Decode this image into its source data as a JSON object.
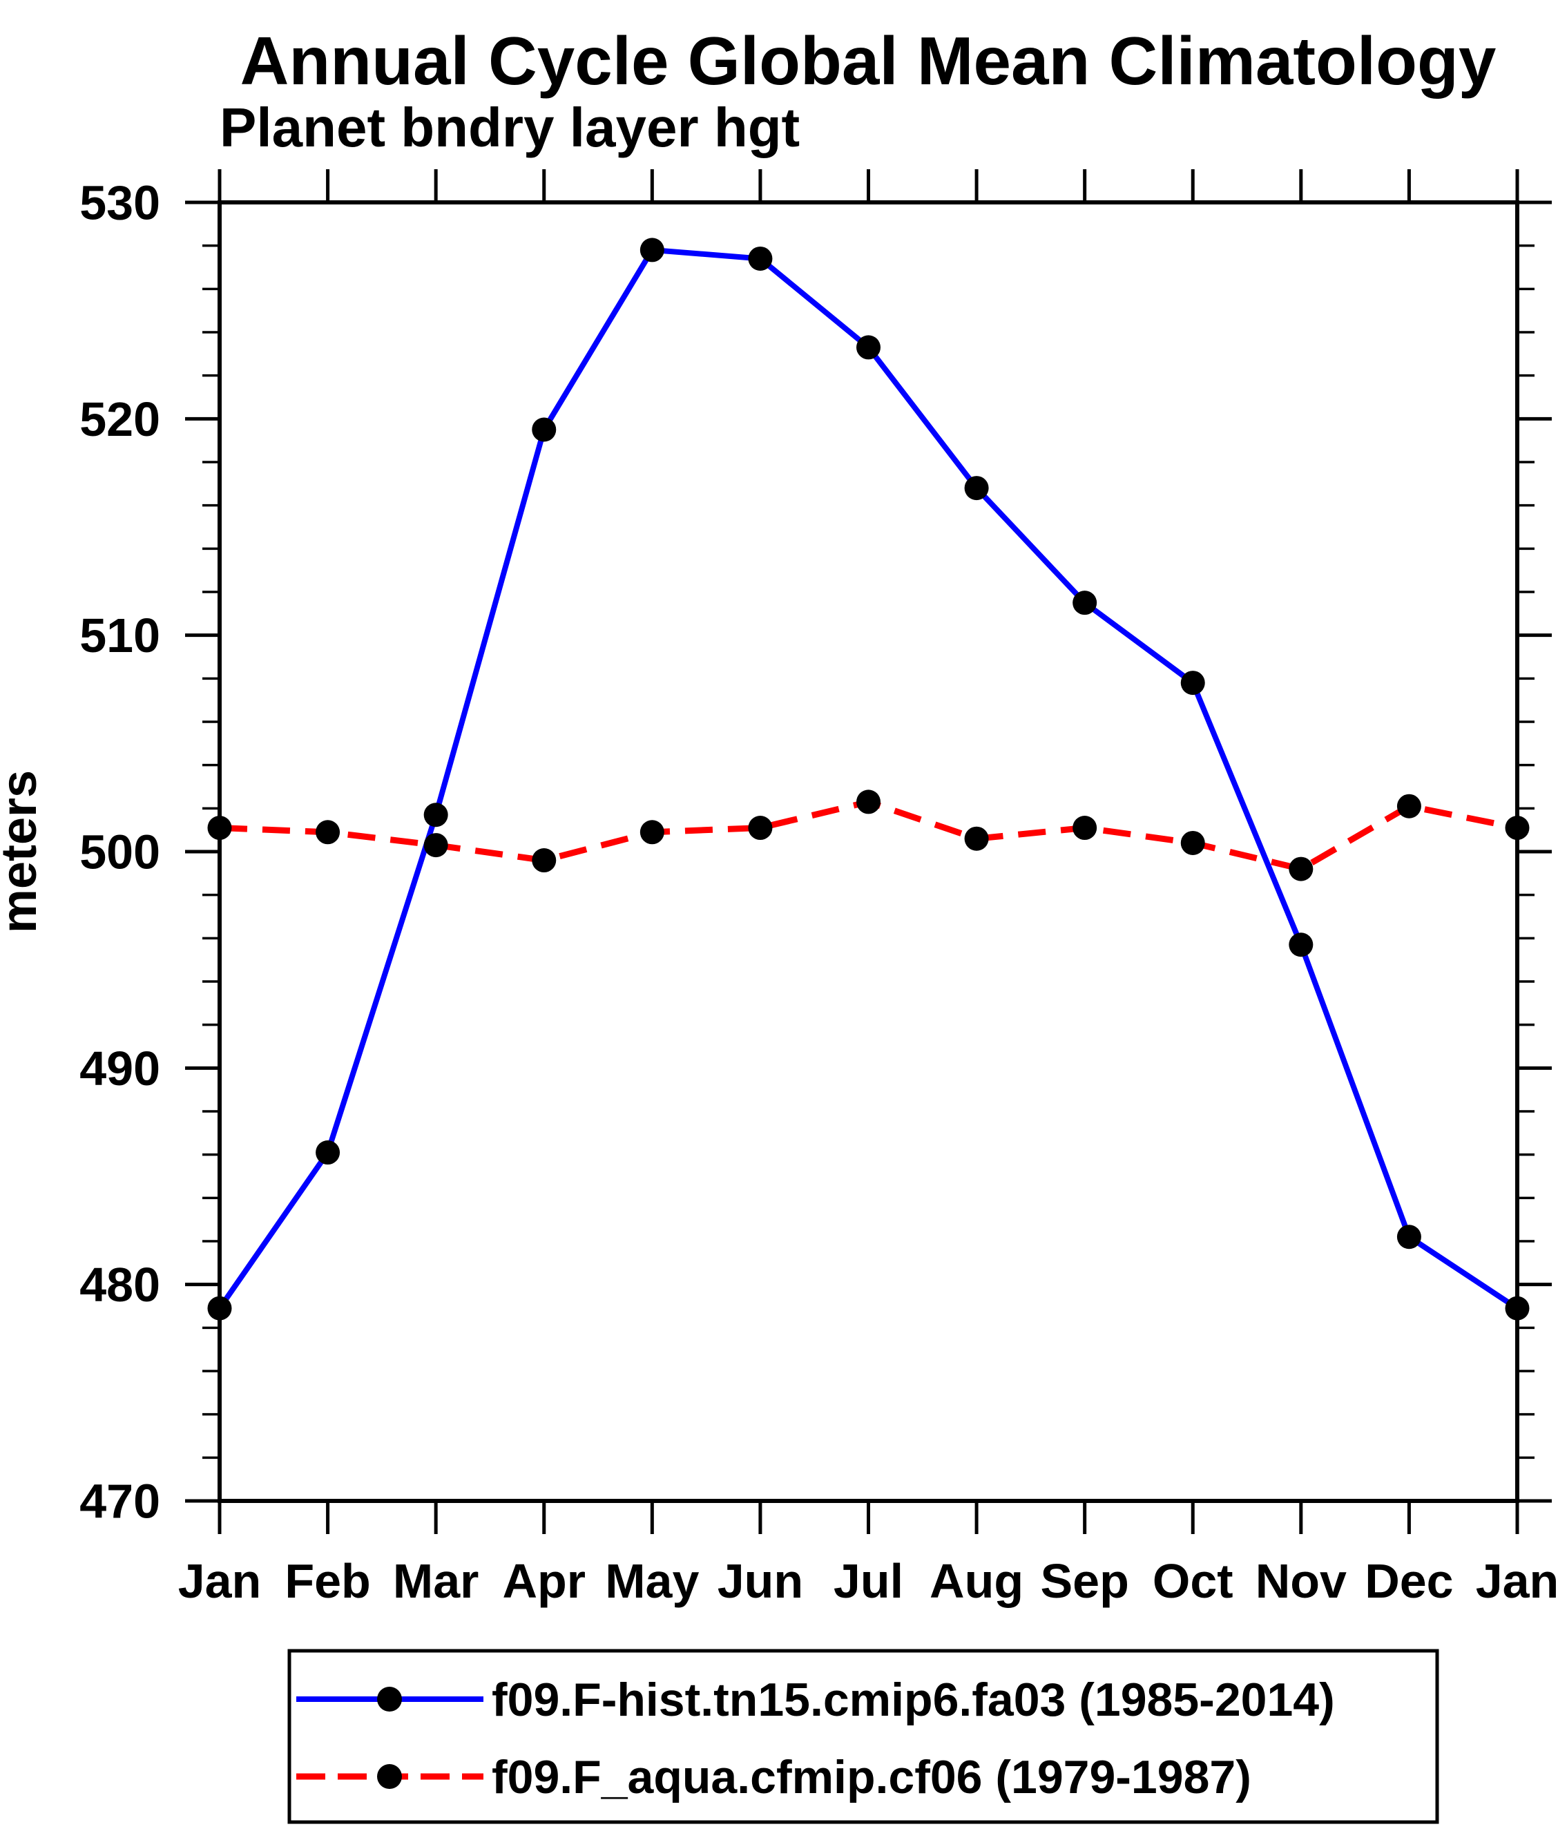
{
  "page": {
    "background": "#ffffff"
  },
  "chart_data": {
    "type": "line",
    "title": "Annual Cycle Global Mean Climatology",
    "subtitle": "Planet bndry layer hgt",
    "ylabel": "meters",
    "xlabel": "",
    "categories": [
      "Jan",
      "Feb",
      "Mar",
      "Apr",
      "May",
      "Jun",
      "Jul",
      "Aug",
      "Sep",
      "Oct",
      "Nov",
      "Dec",
      "Jan"
    ],
    "ylim": [
      470,
      530
    ],
    "ytick_major_interval": 10,
    "ytick_minor_interval": 2,
    "ytick_labels": [
      "470",
      "480",
      "490",
      "500",
      "510",
      "520",
      "530"
    ],
    "grid": false,
    "legend_position": "bottom",
    "axis_color": "#000000",
    "text_color": "#000000",
    "series": [
      {
        "name": "f09.F-hist.tn15.cmip6.fa03 (1985-2014)",
        "color": "#0000ff",
        "line_style": "solid",
        "marker": "filled-circle",
        "marker_color": "#000000",
        "values": [
          478.9,
          486.1,
          501.7,
          519.5,
          527.8,
          527.4,
          523.3,
          516.8,
          511.5,
          507.8,
          495.7,
          482.2,
          478.9
        ]
      },
      {
        "name": "f09.F_aqua.cfmip.cf06 (1979-1987)",
        "color": "#ff0000",
        "line_style": "dashed",
        "marker": "filled-circle",
        "marker_color": "#000000",
        "values": [
          501.1,
          500.9,
          500.3,
          499.6,
          500.9,
          501.1,
          502.3,
          500.6,
          501.1,
          500.4,
          499.2,
          502.1,
          501.1
        ]
      }
    ]
  }
}
